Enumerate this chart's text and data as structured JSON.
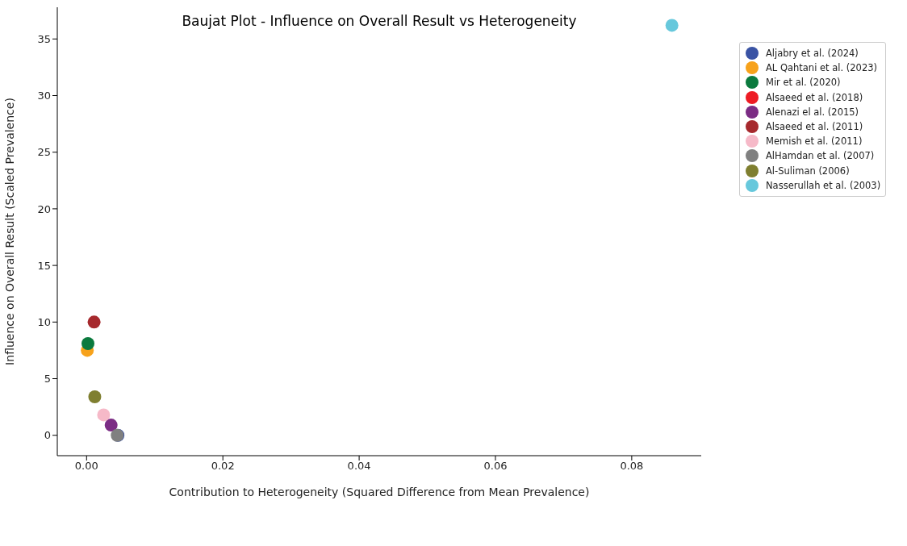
{
  "chart_data": {
    "type": "scatter",
    "title": "Baujat Plot - Influence on Overall Result vs Heterogeneity",
    "xlabel": "Contribution to Heterogeneity (Squared Difference from Mean Prevalence)",
    "ylabel": "Influence on Overall Result (Scaled Prevalence)",
    "xlim": [
      -0.0043,
      0.0902
    ],
    "ylim": [
      -1.8,
      37.8
    ],
    "xticks": [
      {
        "value": 0,
        "label": "0.00"
      },
      {
        "value": 0.02,
        "label": "0.02"
      },
      {
        "value": 0.04,
        "label": "0.04"
      },
      {
        "value": 0.06,
        "label": "0.06"
      },
      {
        "value": 0.08,
        "label": "0.08"
      }
    ],
    "yticks": [
      0,
      5,
      10,
      15,
      20,
      25,
      30,
      35
    ],
    "grid": false,
    "legend": "top right",
    "marker": "circle",
    "series": [
      {
        "name": "Aljabry et al. (2024)",
        "color": "#3a53a4",
        "x": [
          0.0046
        ],
        "values": [
          0
        ]
      },
      {
        "name": "AL Qahtani et al. (2023)",
        "color": "#f7a21b",
        "x": [
          0.0001
        ],
        "values": [
          7.5
        ]
      },
      {
        "name": "Mir et al. (2020)",
        "color": "#0b7a3e",
        "x": [
          0.0002
        ],
        "values": [
          8.1
        ]
      },
      {
        "name": "Alsaeed et al. (2018)",
        "color": "#ed1c24",
        "x": [
          null
        ],
        "values": [
          null
        ]
      },
      {
        "name": "Alenazi el al. (2015)",
        "color": "#7b2c84",
        "x": [
          0.0036
        ],
        "values": [
          0.9
        ]
      },
      {
        "name": "Alsaeed et al. (2011)",
        "color": "#a6292d",
        "x": [
          0.0011
        ],
        "values": [
          10.0
        ]
      },
      {
        "name": "Memish et al. (2011)",
        "color": "#f6b9c8",
        "x": [
          0.0025
        ],
        "values": [
          1.8
        ]
      },
      {
        "name": "AlHamdan et al. (2007)",
        "color": "#808080",
        "x": [
          0.0045
        ],
        "values": [
          0
        ]
      },
      {
        "name": "Al-Suliman (2006)",
        "color": "#7f7f30",
        "x": [
          0.0012
        ],
        "values": [
          3.4
        ]
      },
      {
        "name": "Nasserullah et al. (2003)",
        "color": "#67c8dc",
        "x": [
          0.0859
        ],
        "values": [
          36.2
        ]
      }
    ]
  }
}
